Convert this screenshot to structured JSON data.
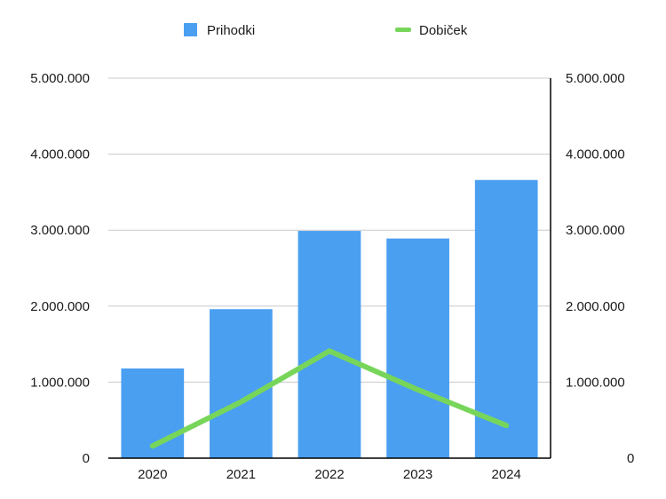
{
  "chart_data": {
    "type": "bar",
    "categories": [
      "2020",
      "2021",
      "2022",
      "2023",
      "2024"
    ],
    "series": [
      {
        "name": "Prihodki",
        "type": "bar",
        "color": "#4a9ff1",
        "values": [
          1180000,
          1960000,
          2990000,
          2890000,
          3660000
        ]
      },
      {
        "name": "Dobiček",
        "type": "line",
        "color": "#77d65a",
        "values": [
          160000,
          740000,
          1410000,
          900000,
          430000
        ]
      }
    ],
    "ylim": [
      0,
      5000000
    ],
    "y_ticks": [
      "0",
      "1.000.000",
      "2.000.000",
      "3.000.000",
      "4.000.000",
      "5.000.000"
    ],
    "y2_ticks": [
      "0",
      "1.000.000",
      "2.000.000",
      "3.000.000",
      "4.000.000",
      "5.000.000"
    ],
    "grid": true,
    "legend_position": "top-center"
  }
}
